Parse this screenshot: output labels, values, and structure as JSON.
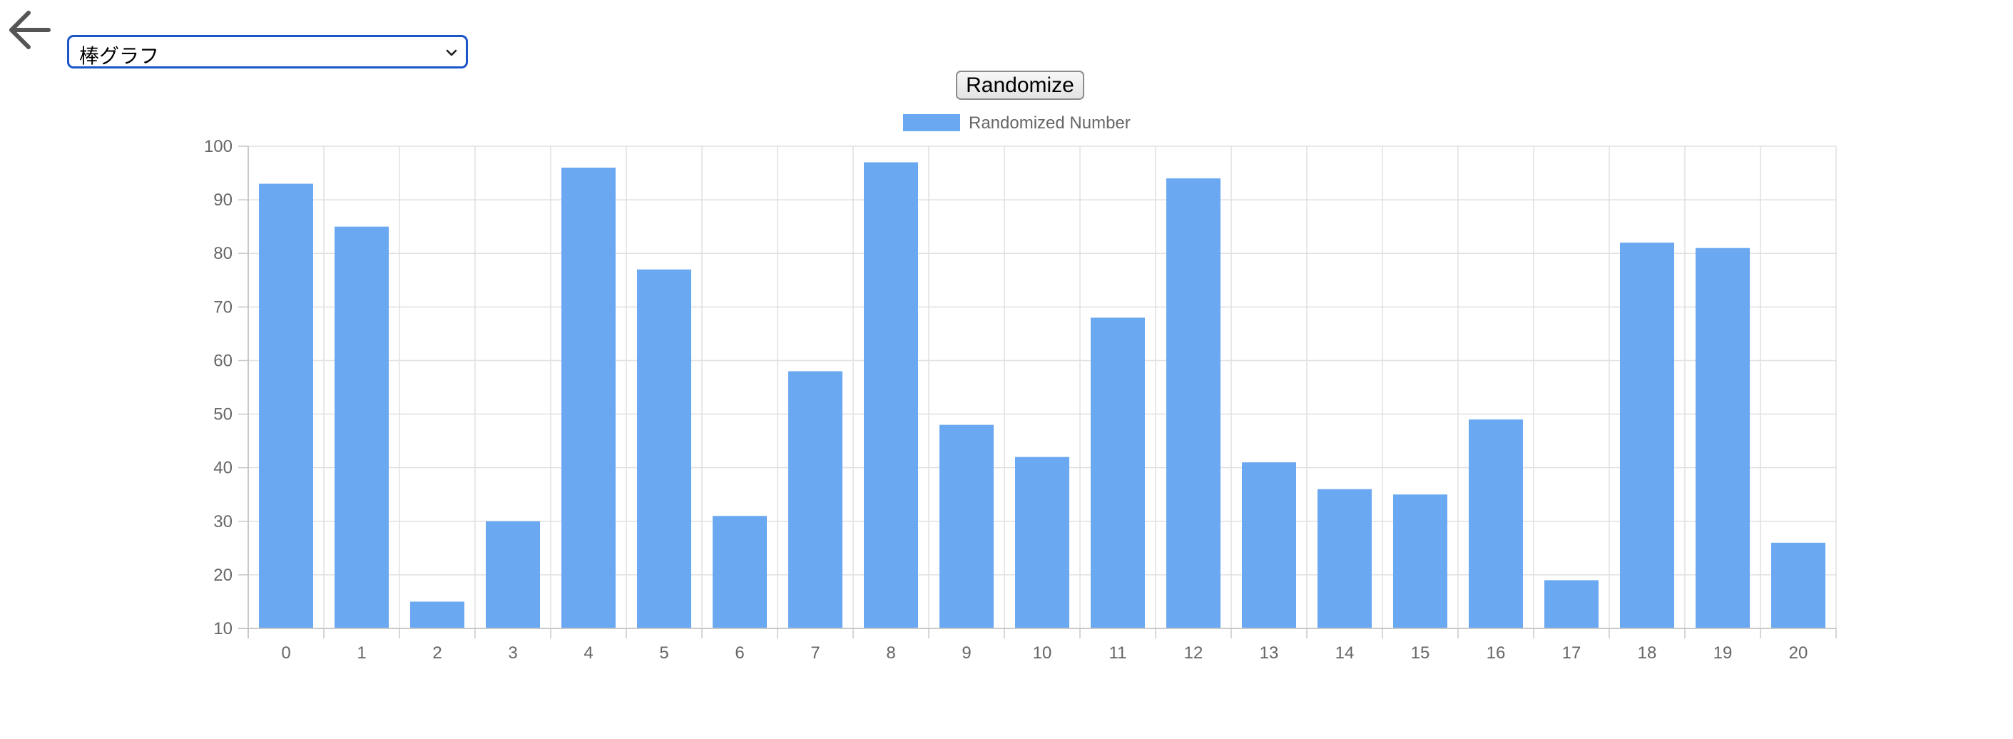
{
  "nav": {
    "back_icon": "arrow-left-icon"
  },
  "chart_select": {
    "selected": "棒グラフ",
    "chevron_icon": "chevron-down-icon"
  },
  "toolbar": {
    "randomize_label": "Randomize"
  },
  "colors": {
    "bar": "#6ba8f2",
    "grid": "#e0e0e0",
    "axis": "#c8c8c8",
    "tick_text": "#666666",
    "select_border": "#1a56c8"
  },
  "chart_data": {
    "type": "bar",
    "categories": [
      "0",
      "1",
      "2",
      "3",
      "4",
      "5",
      "6",
      "7",
      "8",
      "9",
      "10",
      "11",
      "12",
      "13",
      "14",
      "15",
      "16",
      "17",
      "18",
      "19",
      "20"
    ],
    "series": [
      {
        "name": "Randomized Number",
        "values": [
          93,
          85,
          15,
          30,
          96,
          77,
          31,
          58,
          97,
          48,
          42,
          68,
          94,
          41,
          36,
          35,
          49,
          19,
          82,
          81,
          26
        ]
      }
    ],
    "y_ticks": [
      "10",
      "20",
      "30",
      "40",
      "50",
      "60",
      "70",
      "80",
      "90",
      "100"
    ],
    "ylim": [
      10,
      100
    ],
    "grid": true,
    "legend_position": "top-center",
    "title": "",
    "xlabel": "",
    "ylabel": ""
  }
}
